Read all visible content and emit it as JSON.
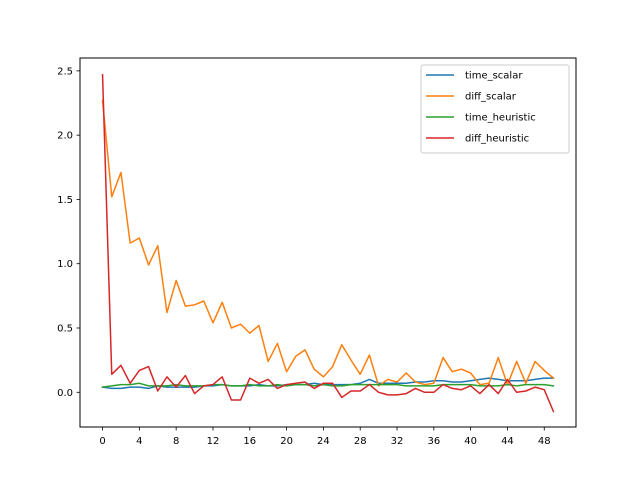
{
  "chart_data": {
    "type": "line",
    "title": "",
    "xlabel": "",
    "ylabel": "",
    "xlim": [
      -2.45,
      51.45
    ],
    "ylim": [
      -0.27,
      2.6
    ],
    "x_ticks": [
      0,
      4,
      8,
      12,
      16,
      20,
      24,
      28,
      32,
      36,
      40,
      44,
      48
    ],
    "y_ticks": [
      0.0,
      0.5,
      1.0,
      1.5,
      2.0,
      2.5
    ],
    "y_tick_labels": [
      "0.0",
      "0.5",
      "1.0",
      "1.5",
      "2.0",
      "2.5"
    ],
    "grid": false,
    "legend_position": "top-right",
    "x": [
      0,
      1,
      2,
      3,
      4,
      5,
      6,
      7,
      8,
      9,
      10,
      11,
      12,
      13,
      14,
      15,
      16,
      17,
      18,
      19,
      20,
      21,
      22,
      23,
      24,
      25,
      26,
      27,
      28,
      29,
      30,
      31,
      32,
      33,
      34,
      35,
      36,
      37,
      38,
      39,
      40,
      41,
      42,
      43,
      44,
      45,
      46,
      47,
      48,
      49
    ],
    "series": [
      {
        "name": "time_scalar",
        "color": "#1f77b4",
        "values": [
          0.04,
          0.03,
          0.03,
          0.04,
          0.04,
          0.03,
          0.05,
          0.04,
          0.04,
          0.04,
          0.04,
          0.05,
          0.05,
          0.06,
          0.05,
          0.05,
          0.05,
          0.06,
          0.05,
          0.05,
          0.06,
          0.06,
          0.06,
          0.07,
          0.06,
          0.06,
          0.06,
          0.06,
          0.07,
          0.1,
          0.07,
          0.07,
          0.07,
          0.07,
          0.08,
          0.08,
          0.09,
          0.09,
          0.08,
          0.08,
          0.09,
          0.1,
          0.11,
          0.1,
          0.09,
          0.09,
          0.09,
          0.1,
          0.11,
          0.11
        ]
      },
      {
        "name": "diff_scalar",
        "color": "#ff7f0e",
        "values": [
          2.27,
          1.52,
          1.71,
          1.16,
          1.2,
          0.99,
          1.14,
          0.62,
          0.87,
          0.67,
          0.68,
          0.71,
          0.54,
          0.7,
          0.5,
          0.53,
          0.46,
          0.52,
          0.24,
          0.38,
          0.16,
          0.28,
          0.33,
          0.18,
          0.12,
          0.2,
          0.37,
          0.25,
          0.14,
          0.29,
          0.05,
          0.1,
          0.08,
          0.15,
          0.08,
          0.06,
          0.07,
          0.27,
          0.16,
          0.18,
          0.15,
          0.06,
          0.07,
          0.27,
          0.06,
          0.24,
          0.07,
          0.24,
          0.17,
          0.11
        ]
      },
      {
        "name": "time_heuristic",
        "color": "#2ca02c",
        "values": [
          0.04,
          0.05,
          0.06,
          0.06,
          0.07,
          0.05,
          0.05,
          0.05,
          0.06,
          0.05,
          0.05,
          0.05,
          0.06,
          0.06,
          0.05,
          0.05,
          0.06,
          0.05,
          0.05,
          0.06,
          0.05,
          0.06,
          0.06,
          0.05,
          0.06,
          0.05,
          0.05,
          0.06,
          0.06,
          0.06,
          0.06,
          0.06,
          0.06,
          0.05,
          0.05,
          0.05,
          0.05,
          0.06,
          0.06,
          0.06,
          0.06,
          0.05,
          0.05,
          0.05,
          0.06,
          0.05,
          0.06,
          0.06,
          0.06,
          0.05
        ]
      },
      {
        "name": "diff_heuristic",
        "color": "#d62728",
        "values": [
          2.47,
          0.14,
          0.21,
          0.07,
          0.17,
          0.2,
          0.01,
          0.12,
          0.04,
          0.13,
          -0.01,
          0.05,
          0.06,
          0.12,
          -0.06,
          -0.06,
          0.11,
          0.07,
          0.1,
          0.03,
          0.06,
          0.07,
          0.08,
          0.03,
          0.07,
          0.07,
          -0.04,
          0.01,
          0.01,
          0.06,
          0.0,
          -0.02,
          -0.02,
          -0.01,
          0.03,
          0.0,
          0.0,
          0.06,
          0.03,
          0.02,
          0.05,
          -0.01,
          0.06,
          -0.01,
          0.1,
          0.0,
          0.01,
          0.04,
          0.02,
          -0.15
        ]
      }
    ]
  }
}
